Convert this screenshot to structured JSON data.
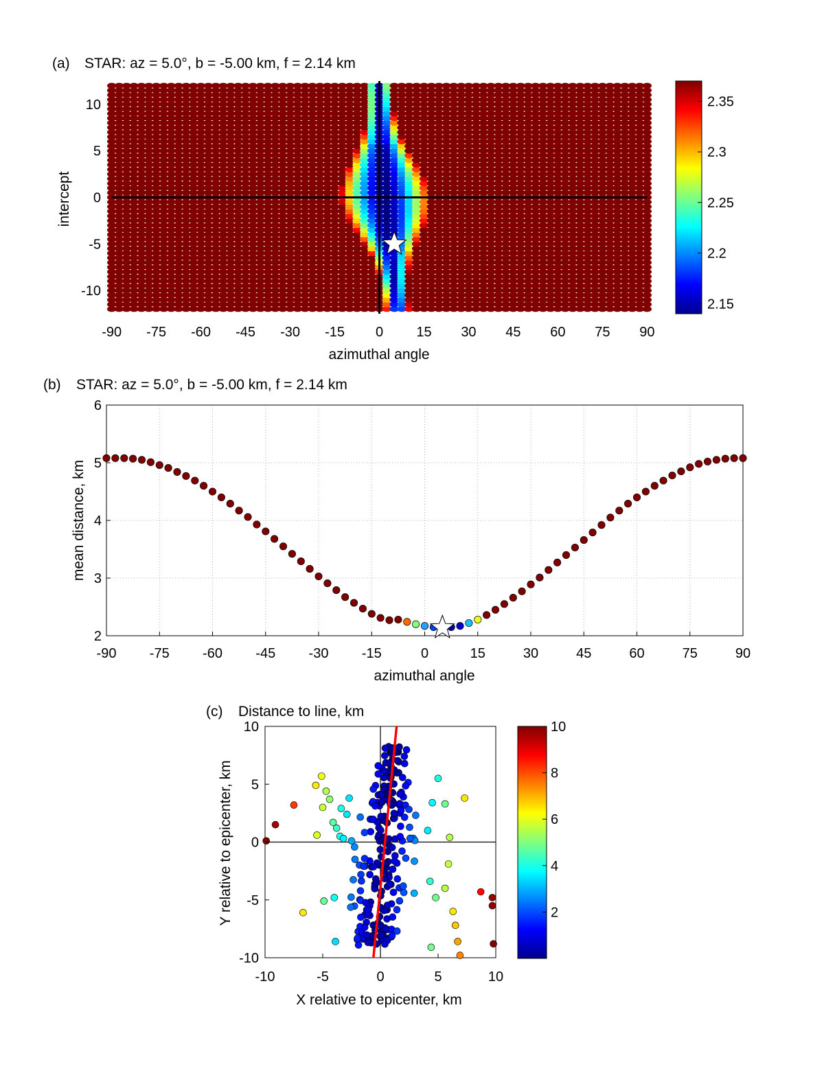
{
  "chart_data": [
    {
      "id": "a",
      "type": "heatmap",
      "panel_label": "(a)",
      "title": "STAR: az = 5.0°, b = -5.00 km, f = 2.14 km",
      "xlabel": "azimuthal angle",
      "ylabel": "intercept",
      "xlim": [
        -92,
        92
      ],
      "ylim": [
        -12.5,
        12.5
      ],
      "xticks": [
        -90,
        -75,
        -60,
        -45,
        -30,
        -15,
        0,
        15,
        30,
        45,
        60,
        75,
        90
      ],
      "yticks": [
        -10,
        -5,
        0,
        5,
        10
      ],
      "grid_x": {
        "start": -90,
        "step": 2.5,
        "count": 73
      },
      "grid_y": {
        "start": -12,
        "step": 0.5,
        "count": 49
      },
      "colorbar": {
        "min": 2.14,
        "max": 2.37,
        "ticks": [
          2.15,
          2.2,
          2.25,
          2.3,
          2.35
        ]
      },
      "background_value": 2.37,
      "marker": {
        "type": "star",
        "x": 5.0,
        "y": -5.0
      },
      "reference_lines": {
        "x": 0,
        "y": 0
      },
      "minimum_band": {
        "x_at_intercept_0": 5,
        "half_width_peak": 15,
        "half_width_far": 4,
        "tilt": 0.35
      }
    },
    {
      "id": "b",
      "type": "scatter",
      "panel_label": "(b)",
      "title": "STAR: az = 5.0°, b = -5.00 km, f = 2.14 km",
      "xlabel": "azimuthal angle",
      "ylabel": "mean distance, km",
      "xlim": [
        -90,
        90
      ],
      "ylim": [
        2,
        6
      ],
      "xticks": [
        -90,
        -75,
        -60,
        -45,
        -30,
        -15,
        0,
        15,
        30,
        45,
        60,
        75,
        90
      ],
      "yticks": [
        2,
        3,
        4,
        5,
        6
      ],
      "grid": true,
      "x": [
        -90,
        -87.5,
        -85,
        -82.5,
        -80,
        -77.5,
        -75,
        -72.5,
        -70,
        -67.5,
        -65,
        -62.5,
        -60,
        -57.5,
        -55,
        -52.5,
        -50,
        -47.5,
        -45,
        -42.5,
        -40,
        -37.5,
        -35,
        -32.5,
        -30,
        -27.5,
        -25,
        -22.5,
        -20,
        -17.5,
        -15,
        -12.5,
        -10,
        -7.5,
        -5,
        -2.5,
        0,
        2.5,
        5,
        7.5,
        10,
        12.5,
        15,
        17.5,
        20,
        22.5,
        25,
        27.5,
        30,
        32.5,
        35,
        37.5,
        40,
        42.5,
        45,
        47.5,
        50,
        52.5,
        55,
        57.5,
        60,
        62.5,
        65,
        67.5,
        70,
        72.5,
        75,
        77.5,
        80,
        82.5,
        85,
        87.5,
        90
      ],
      "y": [
        5.08,
        5.08,
        5.08,
        5.07,
        5.05,
        5.01,
        4.96,
        4.91,
        4.84,
        4.77,
        4.69,
        4.6,
        4.5,
        4.4,
        4.29,
        4.17,
        4.06,
        3.93,
        3.81,
        3.68,
        3.55,
        3.42,
        3.29,
        3.16,
        3.03,
        2.91,
        2.79,
        2.67,
        2.57,
        2.47,
        2.38,
        2.31,
        2.27,
        2.28,
        2.24,
        2.2,
        2.17,
        2.15,
        2.14,
        2.15,
        2.17,
        2.22,
        2.28,
        2.36,
        2.45,
        2.55,
        2.66,
        2.77,
        2.89,
        3.01,
        3.14,
        3.27,
        3.4,
        3.53,
        3.66,
        3.79,
        3.92,
        4.05,
        4.17,
        4.29,
        4.4,
        4.5,
        4.6,
        4.69,
        4.78,
        4.85,
        4.92,
        4.98,
        5.02,
        5.05,
        5.07,
        5.08,
        5.08
      ],
      "colors": {
        "saturated": "#800000",
        "near_min": [
          "#ff6a00",
          "#7fff7f",
          "#2a9fff",
          "#0040ff",
          "#0000cc",
          "#0000b4",
          "#0000d0",
          "#19bfff",
          "#e8ff1a"
        ]
      },
      "marker": {
        "type": "star",
        "x": 5.0,
        "y": 2.14
      }
    },
    {
      "id": "c",
      "type": "scatter",
      "panel_label": "(c)",
      "title": "Distance to line, km",
      "xlabel": "X relative to epicenter, km",
      "ylabel": "Y relative to epicenter, km",
      "xlim": [
        -10,
        10
      ],
      "ylim": [
        -10,
        10
      ],
      "xticks": [
        -10,
        -5,
        0,
        5,
        10
      ],
      "yticks": [
        -10,
        -5,
        0,
        5,
        10
      ],
      "colorbar": {
        "min": 0,
        "max": 10,
        "ticks": [
          2,
          4,
          6,
          8,
          10
        ]
      },
      "fit_line": {
        "azimuth_deg": 5.0,
        "intercept": -5.0,
        "color": "#ff0000"
      },
      "outer_points": [
        [
          -9.9,
          0.1
        ],
        [
          -9.1,
          1.5
        ],
        [
          -7.5,
          3.2
        ],
        [
          -6.7,
          -6.1
        ],
        [
          -5.6,
          4.9
        ],
        [
          -5.5,
          0.6
        ],
        [
          -5.1,
          5.7
        ],
        [
          -5.0,
          3.0
        ],
        [
          -4.9,
          -5.1
        ],
        [
          -4.7,
          4.4
        ],
        [
          -4.4,
          3.7
        ],
        [
          -4.1,
          1.7
        ],
        [
          -4.0,
          -4.8
        ],
        [
          -3.9,
          -8.6
        ],
        [
          -3.8,
          1.2
        ],
        [
          -3.5,
          0.5
        ],
        [
          -3.4,
          2.9
        ],
        [
          -3.2,
          0.3
        ],
        [
          -2.9,
          2.4
        ],
        [
          -2.7,
          3.8
        ],
        [
          -2.5,
          0.1
        ],
        [
          -2.2,
          -1.5
        ],
        [
          -1.9,
          -8.9
        ],
        [
          -1.7,
          -6.5
        ],
        [
          4.1,
          1.0
        ],
        [
          4.3,
          -3.4
        ],
        [
          4.4,
          -9.1
        ],
        [
          4.5,
          3.4
        ],
        [
          4.8,
          -4.8
        ],
        [
          5.0,
          5.5
        ],
        [
          5.6,
          -4.0
        ],
        [
          5.6,
          3.3
        ],
        [
          5.9,
          -1.9
        ],
        [
          6.0,
          0.4
        ],
        [
          6.3,
          -6.0
        ],
        [
          6.5,
          -7.2
        ],
        [
          6.7,
          -8.6
        ],
        [
          6.9,
          -9.8
        ],
        [
          7.3,
          3.8
        ],
        [
          8.7,
          -4.3
        ],
        [
          9.7,
          -4.8
        ],
        [
          9.7,
          -5.5
        ],
        [
          9.8,
          -8.8
        ]
      ],
      "inner_band": {
        "count": 230,
        "jitter_x": 1.45,
        "color_scale_max_offset": 4
      }
    }
  ]
}
